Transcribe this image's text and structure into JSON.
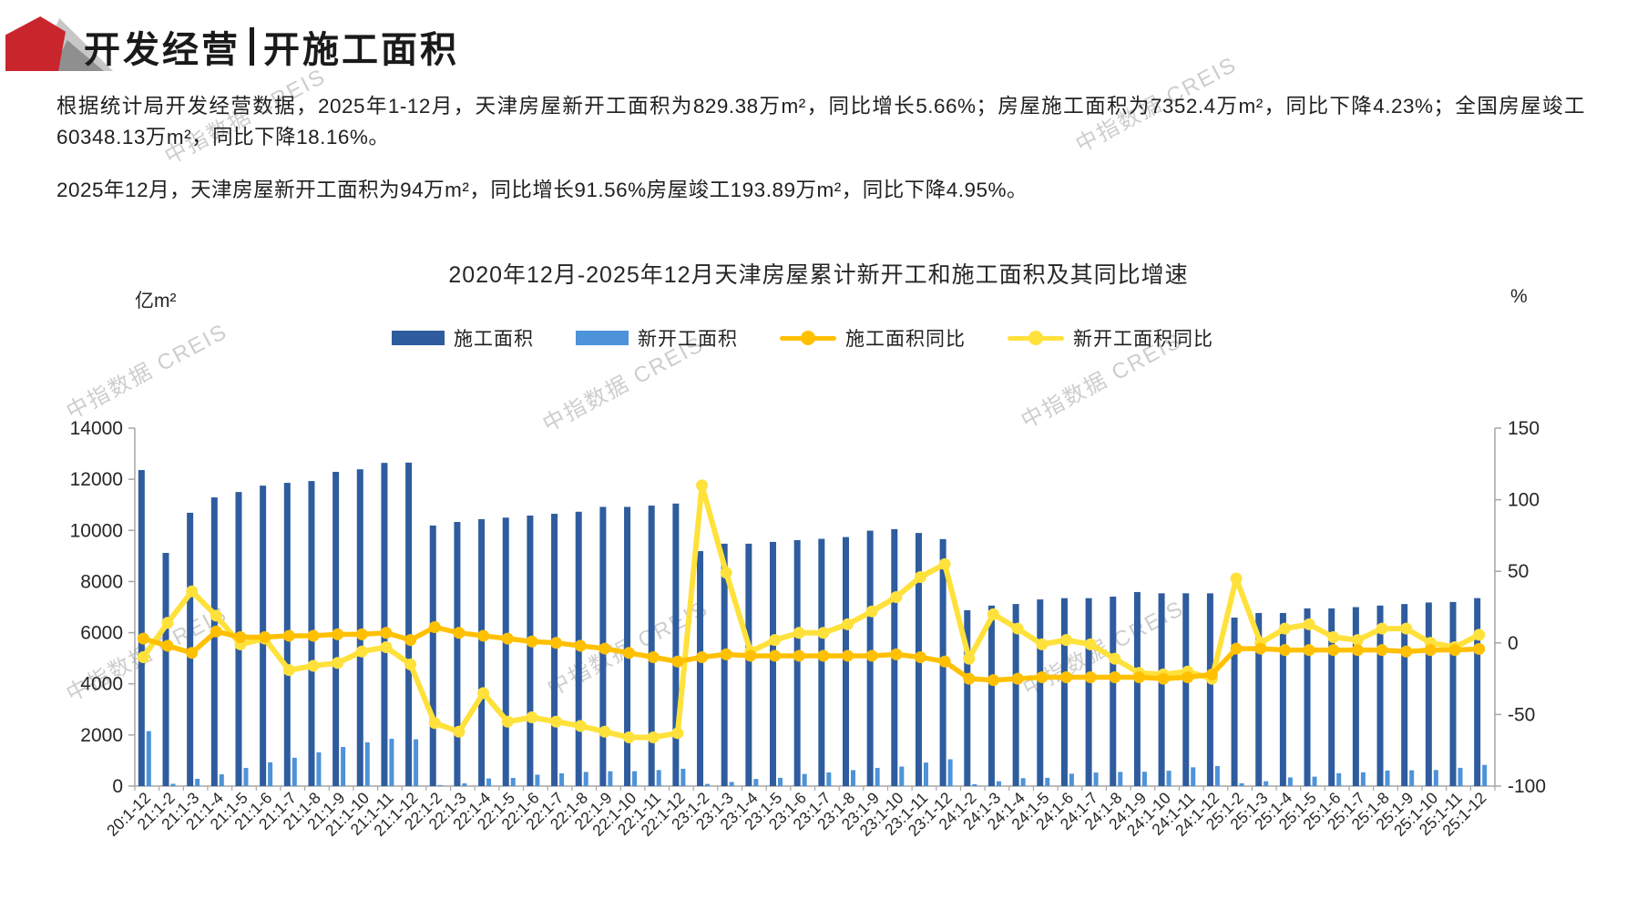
{
  "header": {
    "title_part1": "开发经营",
    "title_part2": "开施工面积"
  },
  "paragraphs": {
    "p1": "根据统计局开发经营数据，2025年1-12月，天津房屋新开工面积为829.38万m²，同比增长5.66%；房屋施工面积为7352.4万m²，同比下降4.23%；全国房屋竣工60348.13万m²，同比下降18.16%。",
    "p2": "2025年12月，天津房屋新开工面积为94万m²，同比增长91.56%房屋竣工193.89万m²，同比下降4.95%。"
  },
  "watermark": {
    "text": "中指数据 CREIS"
  },
  "chart_data": {
    "type": "bar",
    "subtype": "combo-bar-line",
    "title": "2020年12月-2025年12月天津房屋累计新开工和施工面积及其同比增速",
    "legend_position": "top",
    "grid": false,
    "left_axis": {
      "unit": "亿m²",
      "min": 0,
      "max": 14000,
      "ticks": [
        0,
        2000,
        4000,
        6000,
        8000,
        10000,
        12000,
        14000
      ]
    },
    "right_axis": {
      "unit": "%",
      "min": -100,
      "max": 150,
      "ticks": [
        -100,
        -50,
        0,
        50,
        100,
        150
      ]
    },
    "categories": [
      "20:1-12",
      "21:1-2",
      "21:1-3",
      "21:1-4",
      "21:1-5",
      "21:1-6",
      "21:1-7",
      "21:1-8",
      "21:1-9",
      "21:1-10",
      "21:1-11",
      "21:1-12",
      "22:1-2",
      "22:1-3",
      "22:1-4",
      "22:1-5",
      "22:1-6",
      "22:1-7",
      "22:1-8",
      "22:1-9",
      "22:1-10",
      "22:1-11",
      "22:1-12",
      "23:1-2",
      "23:1-3",
      "23:1-4",
      "23:1-5",
      "23:1-6",
      "23:1-7",
      "23:1-8",
      "23:1-9",
      "23:1-10",
      "23:1-11",
      "23:1-12",
      "24:1-2",
      "24:1-3",
      "24:1-4",
      "24:1-5",
      "24:1-6",
      "24:1-7",
      "24:1-8",
      "24:1-9",
      "24:1-10",
      "24:1-11",
      "24:1-12",
      "25:1-2",
      "25:1-3",
      "25:1-4",
      "25:1-5",
      "25:1-6",
      "25:1-7",
      "25:1-8",
      "25:1-9",
      "25:1-10",
      "25:1-11",
      "25:1-12"
    ],
    "series": [
      {
        "name": "施工面积",
        "type": "bar",
        "axis": "left",
        "color": "#2E5C9E",
        "values": [
          12360,
          9120,
          10690,
          11290,
          11500,
          11750,
          11860,
          11930,
          12290,
          12390,
          12640,
          12650,
          10190,
          10330,
          10440,
          10500,
          10580,
          10650,
          10730,
          10920,
          10920,
          10970,
          11050,
          9190,
          9480,
          9480,
          9550,
          9620,
          9670,
          9740,
          9990,
          10050,
          9900,
          9660,
          6880,
          7060,
          7120,
          7300,
          7350,
          7350,
          7410,
          7590,
          7540,
          7540,
          7540,
          6590,
          6770,
          6770,
          6950,
          6950,
          7000,
          7060,
          7120,
          7180,
          7200,
          7352
        ]
      },
      {
        "name": "新开工面积",
        "type": "bar",
        "axis": "left",
        "color": "#4D93D9",
        "values": [
          2150,
          90,
          285,
          460,
          710,
          930,
          1110,
          1320,
          1530,
          1710,
          1850,
          1830,
          40,
          108,
          299,
          320,
          446,
          500,
          554,
          581,
          581,
          629,
          677,
          85,
          160,
          280,
          325,
          475,
          535,
          625,
          710,
          765,
          920,
          1050,
          75,
          190,
          310,
          325,
          485,
          530,
          555,
          560,
          600,
          735,
          785,
          110,
          190,
          340,
          370,
          505,
          540,
          610,
          620,
          630,
          715,
          829
        ]
      },
      {
        "name": "施工面积同比",
        "type": "line",
        "axis": "right",
        "color": "#FFC000",
        "values": [
          3,
          -2,
          -7,
          8,
          4,
          4,
          5,
          5,
          6,
          6,
          7,
          2,
          11,
          7,
          5,
          3,
          1,
          0,
          -2,
          -4,
          -7,
          -10,
          -13,
          -10,
          -8,
          -9,
          -9,
          -9,
          -9,
          -9,
          -9,
          -8,
          -10,
          -13,
          -25,
          -26,
          -25,
          -24,
          -24,
          -24,
          -24,
          -24,
          -25,
          -24,
          -22,
          -4,
          -4,
          -5,
          -5,
          -5,
          -5,
          -5,
          -6,
          -5,
          -5,
          -4.23
        ]
      },
      {
        "name": "新开工面积同比",
        "type": "line",
        "axis": "right",
        "color": "#FFE13B",
        "values": [
          -10,
          14,
          36,
          19,
          -1,
          3,
          -19,
          -16,
          -14,
          -6,
          -3,
          -15,
          -56,
          -62,
          -35,
          -55,
          -52,
          -55,
          -58,
          -62,
          -66,
          -66,
          -63,
          110,
          49,
          -6,
          2,
          7,
          7,
          13,
          22,
          32,
          46,
          55,
          -11,
          20,
          10,
          -1,
          2,
          -1,
          -11,
          -21,
          -22,
          -20,
          -25,
          45,
          0,
          10,
          13,
          4,
          2,
          10,
          10,
          0,
          -3,
          5.66
        ]
      }
    ]
  }
}
